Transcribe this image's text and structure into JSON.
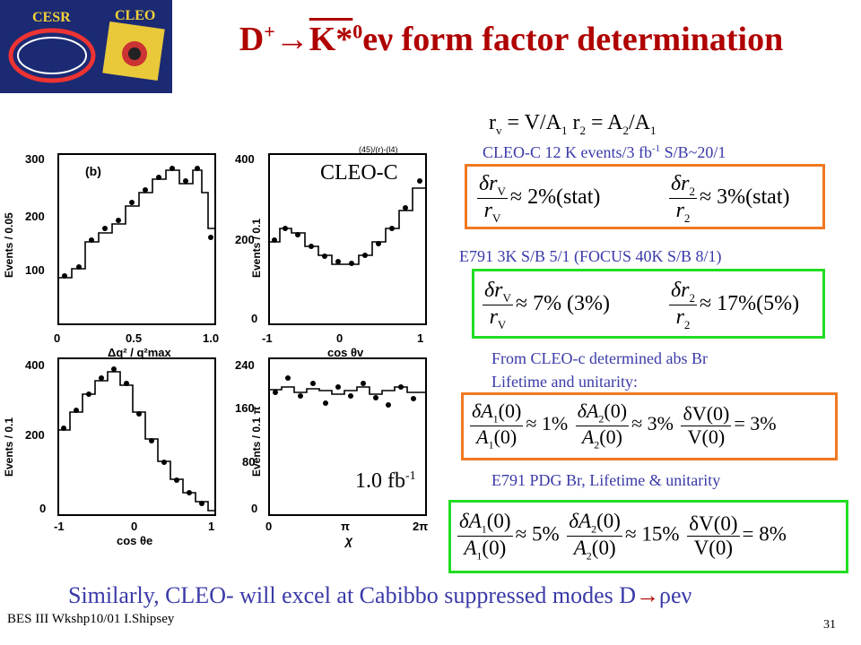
{
  "header": {
    "logo_top": "CESR",
    "logo_right": "CLEO",
    "title_d": "D",
    "title_plus": "+",
    "title_arrow": "→",
    "title_k": "K*",
    "title_sup": "0",
    "title_e": "eν",
    "title_rest": " form factor determination"
  },
  "ratio_line": {
    "rv": "r",
    "rv_sub": "v",
    "eq1": " = V/A",
    "eq1_sub": "1",
    "r2": " r",
    "r2_sub": "2",
    "eq2": " = A",
    "eq2_sub1": "2",
    "eq2_mid": "/A",
    "eq2_sub2": "1"
  },
  "cleo_c_line": {
    "text": "CLEO-C 12 K events/3 fb",
    "sup": "-1",
    "tail": " S/B~20/1"
  },
  "e791_line": "E791  3K S/B 5/1 (FOCUS 40K S/B 8/1)",
  "from_cleo_line": "From CLEO-c determined abs Br",
  "lifetime_line": "Lifetime and unitarity:",
  "e791_pdg_line": "E791 PDG Br, Lifetime & unitarity",
  "figure_labels": {
    "cleo_c": "CLEO-C",
    "lumi": "1.0 fb",
    "lumi_sup": "-1",
    "panel_b": "(b)",
    "corner": "(45)/(r)-(l4)",
    "plot_tl": {
      "ylabel": "Events / 0.05",
      "yticks": [
        "300",
        "200",
        "100"
      ],
      "xticks": [
        "0",
        "0.5",
        "1.0"
      ],
      "xlabel": "Δq² / q²max"
    },
    "plot_tr": {
      "ylabel": "Events / 0.1",
      "yticks": [
        "400",
        "200",
        "0"
      ],
      "xticks": [
        "-1",
        "0",
        "1"
      ],
      "xlabel": "cos θv"
    },
    "plot_bl": {
      "ylabel": "Events / 0.1",
      "yticks": [
        "400",
        "200",
        "0"
      ],
      "xticks": [
        "-1",
        "0",
        "1"
      ],
      "xlabel": "cos θe"
    },
    "plot_br": {
      "ylabel": "Events / 0.1 π",
      "yticks": [
        "240",
        "160",
        "80",
        "0"
      ],
      "xticks": [
        "0",
        "π",
        "2π"
      ],
      "xlabel": "χ"
    }
  },
  "eq_cleo": {
    "f1_num": "δr",
    "f1_num_sub": "V",
    "f1_den": "r",
    "f1_den_sub": "V",
    "f1_val": "≈ 2%(stat)",
    "f2_num": "δr",
    "f2_num_sub": "2",
    "f2_den": "r",
    "f2_den_sub": "2",
    "f2_val": "≈ 3%(stat)"
  },
  "eq_e791": {
    "f1_num": "δr",
    "f1_num_sub": "V",
    "f1_den": "r",
    "f1_den_sub": "V",
    "f1_val": "≈ 7%  (3%)",
    "f2_num": "δr",
    "f2_num_sub": "2",
    "f2_den": "r",
    "f2_den_sub": "2",
    "f2_val": "≈ 17%(5%)"
  },
  "eq_cleo_ff": {
    "f1_num": "δA",
    "f1_num_sub": "1",
    "f1_num_tail": "(0)",
    "f1_den": "A",
    "f1_den_sub": "1",
    "f1_den_tail": "(0)",
    "f1_val": "≈ 1%",
    "f2_num": "δA",
    "f2_num_sub": "2",
    "f2_num_tail": "(0)",
    "f2_den": "A",
    "f2_den_sub": "2",
    "f2_den_tail": "(0)",
    "f2_val": "≈ 3%",
    "f3_num": "δV(0)",
    "f3_den": "V(0)",
    "f3_val": "= 3%"
  },
  "eq_e791_ff": {
    "f1_num": "δA",
    "f1_num_sub": "1",
    "f1_num_tail": "(0)",
    "f1_den": "A",
    "f1_den_sub": "1",
    "f1_den_tail": "(0)",
    "f1_val": "≈ 5%",
    "f2_num": "δA",
    "f2_num_sub": "2",
    "f2_num_tail": "(0)",
    "f2_den": "A",
    "f2_den_sub": "2",
    "f2_den_tail": "(0)",
    "f2_val": "≈ 15%",
    "f3_num": "δV(0)",
    "f3_den": "V(0)",
    "f3_val": "= 8%"
  },
  "bottom_line": "Similarly, CLEO- will excel at Cabibbo suppressed modes D",
  "bottom_arrow": "→",
  "bottom_tail": "ρeν",
  "footer_left": "BES III Wkshp10/01 I.Shipsey",
  "page_number": "31",
  "colors": {
    "title": "#b00000",
    "blue_text": "#3a3aa8",
    "orange": "#f07820",
    "green": "#22dd22",
    "logo_bg": "#1b2a73"
  }
}
